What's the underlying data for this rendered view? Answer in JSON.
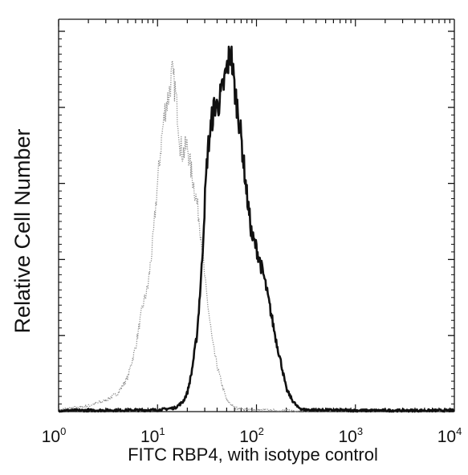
{
  "chart_data": {
    "type": "line",
    "title": "",
    "xlabel": "FITC  RBP4,  with isotype control",
    "ylabel": "Relative Cell Number",
    "x_scale": "log",
    "xlim": [
      1,
      10000
    ],
    "ylim": [
      0,
      1
    ],
    "x_ticks": [
      {
        "base": "10",
        "exp": "0"
      },
      {
        "base": "10",
        "exp": "1"
      },
      {
        "base": "10",
        "exp": "2"
      },
      {
        "base": "10",
        "exp": "3"
      },
      {
        "base": "10",
        "exp": "4"
      }
    ],
    "grid": false,
    "legend": "none",
    "series": [
      {
        "style": "light-dotted",
        "color": "#8c8c8c",
        "x": [
          1,
          2,
          3,
          4,
          5,
          6,
          7,
          8,
          9,
          10,
          11,
          12,
          13,
          14,
          15,
          16,
          17,
          18,
          20,
          22,
          25,
          28,
          30,
          33,
          36,
          40,
          45,
          50,
          60,
          80,
          100,
          200,
          500,
          1000,
          10000
        ],
        "y": [
          0.005,
          0.015,
          0.03,
          0.05,
          0.09,
          0.17,
          0.27,
          0.33,
          0.45,
          0.6,
          0.72,
          0.8,
          0.83,
          0.89,
          0.85,
          0.78,
          0.7,
          0.68,
          0.7,
          0.63,
          0.55,
          0.45,
          0.35,
          0.26,
          0.18,
          0.12,
          0.07,
          0.03,
          0.01,
          0.005,
          0.004,
          0.003,
          0.002,
          0.002,
          0.002
        ]
      },
      {
        "style": "dark-solid",
        "color": "#111111",
        "x": [
          1,
          10,
          15,
          18,
          20,
          22,
          25,
          28,
          30,
          32,
          35,
          38,
          40,
          45,
          50,
          55,
          60,
          65,
          70,
          80,
          90,
          100,
          120,
          140,
          160,
          180,
          200,
          230,
          260,
          300,
          1000,
          10000
        ],
        "y": [
          0.003,
          0.004,
          0.01,
          0.025,
          0.05,
          0.1,
          0.2,
          0.38,
          0.55,
          0.68,
          0.76,
          0.81,
          0.8,
          0.84,
          0.9,
          0.95,
          0.85,
          0.79,
          0.72,
          0.57,
          0.46,
          0.43,
          0.35,
          0.26,
          0.18,
          0.12,
          0.06,
          0.03,
          0.012,
          0.005,
          0.003,
          0.003
        ]
      }
    ]
  }
}
